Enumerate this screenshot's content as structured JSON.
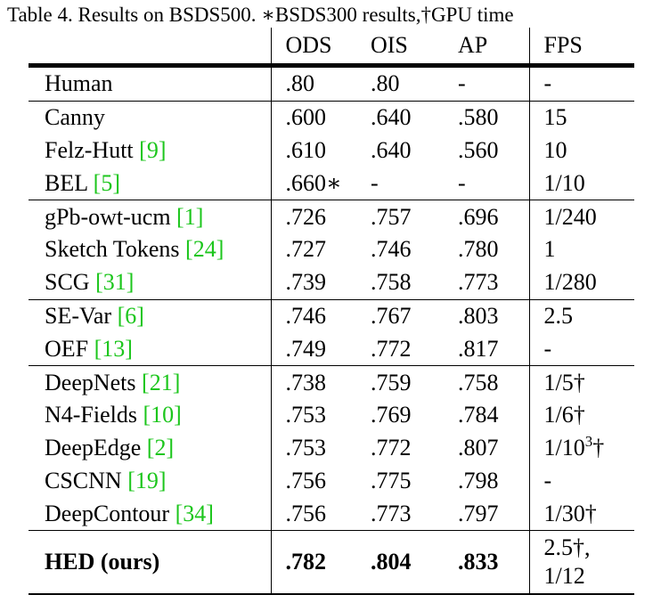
{
  "caption": "Table 4. Results on BSDS500. ∗BSDS300 results,†GPU time",
  "headers": [
    "",
    "ODS",
    "OIS",
    "AP",
    "FPS"
  ],
  "rows": [
    {
      "method": "Human",
      "cite": "",
      "ods": ".80",
      "ois": ".80",
      "ap": "-",
      "fps": "-"
    },
    {
      "method": "Canny",
      "cite": "",
      "ods": ".600",
      "ois": ".640",
      "ap": ".580",
      "fps": "15"
    },
    {
      "method": "Felz-Hutt",
      "cite": "9",
      "ods": ".610",
      "ois": ".640",
      "ap": ".560",
      "fps": "10"
    },
    {
      "method": "BEL",
      "cite": "5",
      "ods": ".660∗",
      "ois": "-",
      "ap": "-",
      "fps": "1/10"
    },
    {
      "method": "gPb-owt-ucm",
      "cite": "1",
      "ods": ".726",
      "ois": ".757",
      "ap": ".696",
      "fps": "1/240"
    },
    {
      "method": "Sketch Tokens",
      "cite": "24",
      "ods": ".727",
      "ois": ".746",
      "ap": ".780",
      "fps": "1"
    },
    {
      "method": "SCG",
      "cite": "31",
      "ods": ".739",
      "ois": ".758",
      "ap": ".773",
      "fps": "1/280"
    },
    {
      "method": "SE-Var",
      "cite": "6",
      "ods": ".746",
      "ois": ".767",
      "ap": ".803",
      "fps": "2.5"
    },
    {
      "method": "OEF",
      "cite": "13",
      "ods": ".749",
      "ois": ".772",
      "ap": ".817",
      "fps": "-"
    },
    {
      "method": "DeepNets",
      "cite": "21",
      "ods": ".738",
      "ois": ".759",
      "ap": ".758",
      "fps": "1/5†"
    },
    {
      "method": "N4-Fields",
      "cite": "10",
      "ods": ".753",
      "ois": ".769",
      "ap": ".784",
      "fps": "1/6†"
    },
    {
      "method": "DeepEdge",
      "cite": "2",
      "ods": ".753",
      "ois": ".772",
      "ap": ".807",
      "fps_base": "1/10",
      "fps_sup": "3",
      "fps_suffix": "†"
    },
    {
      "method": "CSCNN",
      "cite": "19",
      "ods": ".756",
      "ois": ".775",
      "ap": ".798",
      "fps": "-"
    },
    {
      "method": "DeepContour",
      "cite": "34",
      "ods": ".756",
      "ois": ".773",
      "ap": ".797",
      "fps": "1/30†"
    }
  ],
  "final_row": {
    "method": "HED (ours)",
    "ods": ".782",
    "ois": ".804",
    "ap": ".833",
    "fps_line1": "2.5†,",
    "fps_line2": "1/12"
  },
  "colors": {
    "citation": "#1cc61c",
    "text": "#000000"
  }
}
